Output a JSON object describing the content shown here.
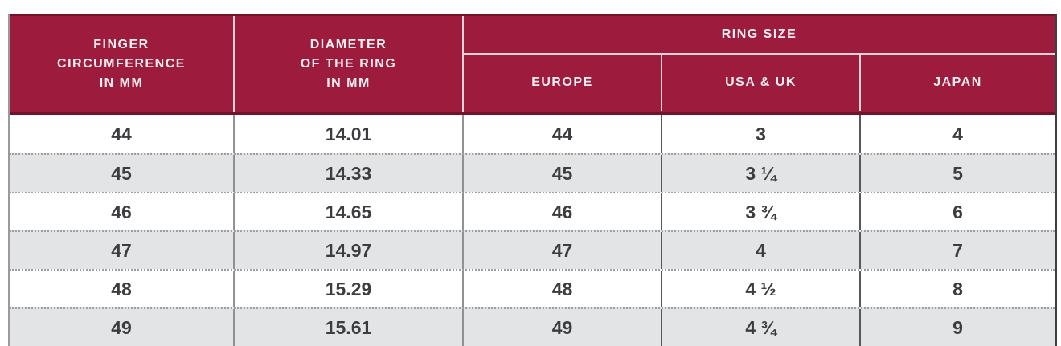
{
  "chart_data": {
    "type": "table",
    "headers": {
      "finger_circumference": "FINGER\nCIRCUMFERENCE\nIN MM",
      "diameter": "DIAMETER\nOF THE RING\nIN MM",
      "ring_size_group": "RING SIZE",
      "ring_size_columns": [
        "EUROPE",
        "USA & UK",
        "JAPAN"
      ]
    },
    "rows": [
      [
        "44",
        "14.01",
        "44",
        "3",
        "4"
      ],
      [
        "45",
        "14.33",
        "45",
        "3 ¼",
        "5"
      ],
      [
        "46",
        "14.65",
        "46",
        "3 ¾",
        "6"
      ],
      [
        "47",
        "14.97",
        "47",
        "4",
        "7"
      ],
      [
        "48",
        "15.29",
        "48",
        "4 ½",
        "8"
      ],
      [
        "49",
        "15.61",
        "49",
        "4 ¾",
        "9"
      ]
    ],
    "layout_hints": {
      "last_row_clipped": true,
      "row_separator": "dotted",
      "alternating_rows": true
    },
    "colors": {
      "header_bg": "#9d1b3d",
      "header_text": "#f7eef1",
      "header_top_border": "#701428",
      "row_alt_bg": "#e3e4e6",
      "data_text": "#3d3d41",
      "divider_light": "#919195",
      "divider_dark": "#58585c"
    }
  }
}
